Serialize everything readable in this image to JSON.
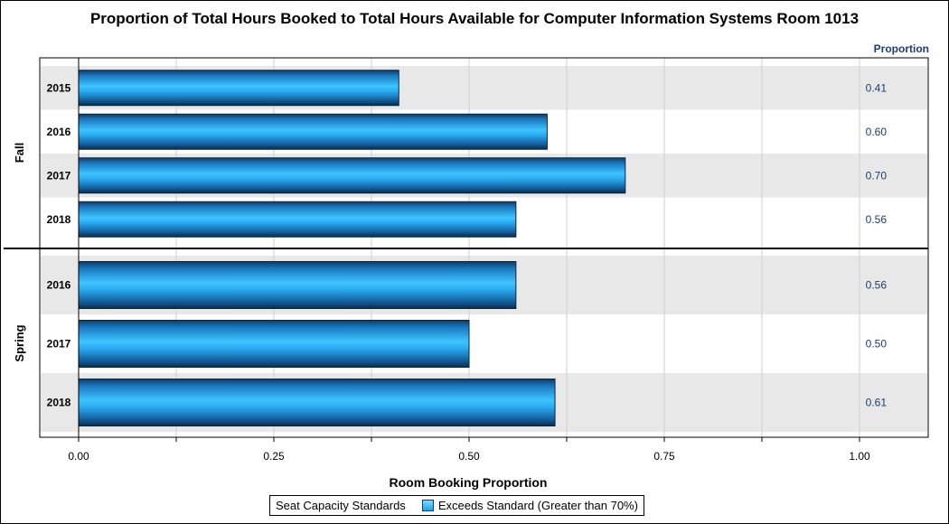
{
  "chart_data": {
    "type": "bar",
    "orientation": "horizontal",
    "title": "Proportion of Total Hours Booked to Total Hours Available for Computer Information Systems Room 1013",
    "xlabel": "Room Booking Proportion",
    "value_column_header": "Proportion",
    "xlim": [
      0,
      1.08
    ],
    "x_ticks": [
      "0.00",
      "0.25",
      "0.50",
      "0.75",
      "1.00"
    ],
    "x_tick_values": [
      0,
      0.25,
      0.5,
      0.75,
      1.0
    ],
    "grid": true,
    "bar_color": "#1aa3ee",
    "groups": [
      {
        "name": "Fall",
        "categories": [
          "2015",
          "2016",
          "2017",
          "2018"
        ],
        "values": [
          0.41,
          0.6,
          0.7,
          0.56
        ],
        "value_labels": [
          "0.41",
          "0.60",
          "0.70",
          "0.56"
        ]
      },
      {
        "name": "Spring",
        "categories": [
          "2016",
          "2017",
          "2018"
        ],
        "values": [
          0.56,
          0.5,
          0.61
        ],
        "value_labels": [
          "0.56",
          "0.50",
          "0.61"
        ]
      }
    ],
    "legend": {
      "placement": "bottom-center",
      "title": "Seat Capacity Standards",
      "entries": [
        {
          "name": "Exceeds Standard (Greater than 70%)",
          "color": "#1aa3ee"
        }
      ]
    }
  }
}
